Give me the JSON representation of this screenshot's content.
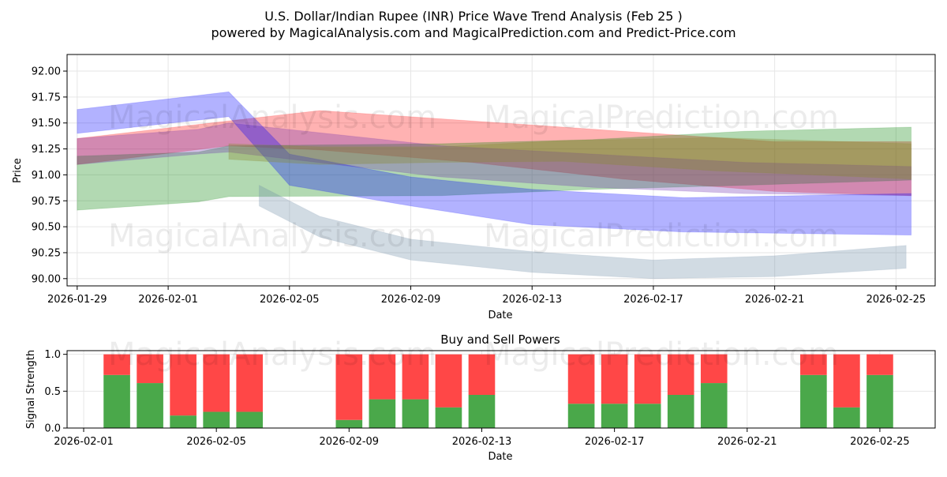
{
  "header": {
    "title": "U.S. Dollar/Indian Rupee (INR) Price Wave Trend Analysis (Feb 25 )",
    "subtitle": "powered by MagicalAnalysis.com and MagicalPrediction.com and Predict-Price.com"
  },
  "watermarks": [
    "MagicalAnalysis.com",
    "MagicalPrediction.com"
  ],
  "chart_data": [
    {
      "type": "area",
      "title": "",
      "xlabel": "Date",
      "ylabel": "Price",
      "x_range": [
        "2026-01-28T16:00",
        "2026-02-26T07:00"
      ],
      "ylim": [
        89.93,
        92.16
      ],
      "yticks": [
        90.0,
        90.25,
        90.5,
        90.75,
        91.0,
        91.25,
        91.5,
        91.75,
        92.0
      ],
      "ytick_labels": [
        "90.00",
        "90.25",
        "90.50",
        "90.75",
        "91.00",
        "91.25",
        "91.50",
        "91.75",
        "92.00"
      ],
      "xticks": [
        "2026-01-29",
        "2026-02-01",
        "2026-02-05",
        "2026-02-09",
        "2026-02-13",
        "2026-02-17",
        "2026-02-21",
        "2026-02-25"
      ],
      "grid": true,
      "series": [
        {
          "name": "red band",
          "color": "#ff0000",
          "alpha": 0.3,
          "x": [
            "2026-01-29",
            "2026-02-03",
            "2026-02-06",
            "2026-02-11",
            "2026-02-16",
            "2026-02-21",
            "2026-02-25T12:00"
          ],
          "upper": [
            91.35,
            91.52,
            91.62,
            91.52,
            91.42,
            91.32,
            91.32
          ],
          "lower": [
            91.1,
            91.28,
            91.24,
            91.12,
            90.96,
            90.84,
            90.8
          ]
        },
        {
          "name": "green band",
          "color": "#008000",
          "alpha": 0.3,
          "x": [
            "2026-01-29",
            "2026-02-02",
            "2026-02-03",
            "2026-02-10",
            "2026-02-15",
            "2026-02-20",
            "2026-02-25T12:00"
          ],
          "upper": [
            91.18,
            91.22,
            91.28,
            91.3,
            91.34,
            91.42,
            91.46
          ],
          "lower": [
            90.66,
            90.74,
            90.79,
            90.8,
            90.86,
            90.9,
            90.95
          ]
        },
        {
          "name": "purple band",
          "color": "#6a2ab0",
          "alpha": 0.3,
          "x": [
            "2026-01-29",
            "2026-02-02",
            "2026-02-03",
            "2026-02-10",
            "2026-02-15",
            "2026-02-20",
            "2026-02-25T12:00"
          ],
          "upper": [
            91.35,
            91.44,
            91.5,
            91.28,
            91.2,
            91.12,
            91.08
          ],
          "lower": [
            91.1,
            91.2,
            91.22,
            90.98,
            90.88,
            90.82,
            90.8
          ]
        },
        {
          "name": "blue band upper",
          "color": "#0000ff",
          "alpha": 0.3,
          "x": [
            "2026-01-29",
            "2026-02-03",
            "2026-02-05",
            "2026-02-09",
            "2026-02-13",
            "2026-02-18",
            "2026-02-25T12:00"
          ],
          "upper": [
            91.63,
            91.8,
            91.2,
            90.98,
            90.86,
            90.78,
            90.82
          ],
          "lower": [
            91.4,
            91.56,
            90.9,
            90.7,
            90.52,
            90.45,
            90.42
          ]
        },
        {
          "name": "olive mean band",
          "color": "#8a8a30",
          "alpha": 0.35,
          "x": [
            "2026-02-03",
            "2026-02-06",
            "2026-02-10",
            "2026-02-14",
            "2026-02-19",
            "2026-02-25T12:00"
          ],
          "upper": [
            91.3,
            91.27,
            91.27,
            91.33,
            91.36,
            91.3
          ],
          "lower": [
            91.15,
            91.1,
            91.12,
            91.13,
            91.04,
            90.96
          ]
        },
        {
          "name": "slate lower band",
          "color": "#6f8fa8",
          "alpha": 0.32,
          "x": [
            "2026-02-04",
            "2026-02-06",
            "2026-02-09",
            "2026-02-13",
            "2026-02-17",
            "2026-02-21",
            "2026-02-25T08:00"
          ],
          "upper": [
            90.9,
            90.6,
            90.38,
            90.26,
            90.18,
            90.22,
            90.32
          ],
          "lower": [
            90.7,
            90.4,
            90.18,
            90.06,
            90.0,
            90.02,
            90.1
          ]
        }
      ]
    },
    {
      "type": "bar",
      "title": "Buy and Sell Powers",
      "xlabel": "Date",
      "ylabel": "Signal Strength",
      "ylim": [
        0,
        1.05
      ],
      "yticks": [
        0.0,
        0.5,
        1.0
      ],
      "ytick_labels": [
        "0.0",
        "0.5",
        "1.0"
      ],
      "x_range": [
        "2026-01-31T12:00",
        "2026-02-26T16:00"
      ],
      "xticks": [
        "2026-02-01",
        "2026-02-05",
        "2026-02-09",
        "2026-02-13",
        "2026-02-17",
        "2026-02-21",
        "2026-02-25"
      ],
      "grid": true,
      "categories": [
        "2026-02-02",
        "2026-02-03",
        "2026-02-04",
        "2026-02-05",
        "2026-02-06",
        "2026-02-09",
        "2026-02-10",
        "2026-02-11",
        "2026-02-12",
        "2026-02-13",
        "2026-02-16",
        "2026-02-17",
        "2026-02-18",
        "2026-02-19",
        "2026-02-20",
        "2026-02-23",
        "2026-02-24",
        "2026-02-25"
      ],
      "series": [
        {
          "name": "Buy",
          "color": "#4aa84a",
          "values": [
            0.72,
            0.61,
            0.17,
            0.22,
            0.22,
            0.11,
            0.39,
            0.39,
            0.28,
            0.45,
            0.33,
            0.33,
            0.33,
            0.45,
            0.61,
            0.72,
            0.28,
            0.72
          ]
        },
        {
          "name": "Sell",
          "color": "#ff4747",
          "values": [
            0.28,
            0.39,
            0.83,
            0.78,
            0.78,
            0.89,
            0.61,
            0.61,
            0.72,
            0.55,
            0.67,
            0.67,
            0.67,
            0.55,
            0.39,
            0.28,
            0.72,
            0.28
          ]
        }
      ]
    }
  ]
}
